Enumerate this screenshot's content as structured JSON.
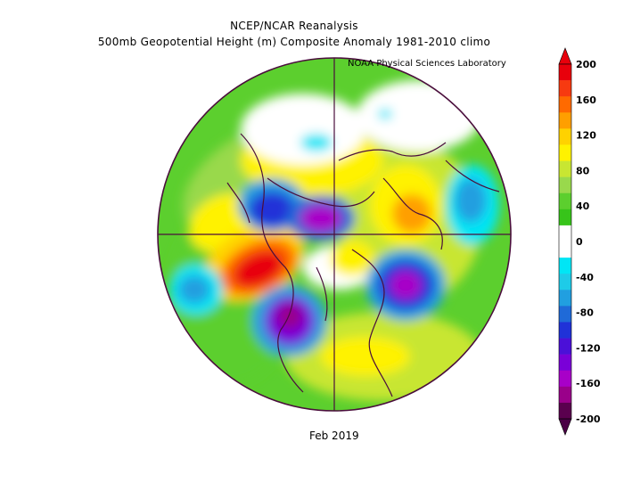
{
  "header": {
    "line1": "NCEP/NCAR Reanalysis",
    "line2": "500mb Geopotential Height (m) Composite Anomaly 1981-2010 climo",
    "credit": "NOAA Physical Sciences Laboratory"
  },
  "footer": {
    "date": "Feb 2019"
  },
  "colorbar": {
    "labels": [
      "200",
      "160",
      "120",
      "80",
      "40",
      "0",
      "-40",
      "-80",
      "-120",
      "-160",
      "-200"
    ],
    "colors": [
      "#e8000c",
      "#f73a10",
      "#ff6a00",
      "#ff9f00",
      "#ffd200",
      "#fff200",
      "#c8e632",
      "#99d94c",
      "#5ccf2e",
      "#37c41a",
      "#ffffff",
      "#ffffff",
      "#00e6f5",
      "#1ecbe8",
      "#219fe0",
      "#1f6ad8",
      "#2032d8",
      "#4b10d8",
      "#7a00d8",
      "#a800c8",
      "#9a008a",
      "#5a004e"
    ],
    "top_color": "#e8000c",
    "bottom_color": "#4a0046"
  },
  "map_colors": {
    "p1": "#5ccf2e",
    "p2": "#99d94c",
    "p3": "#c8e632",
    "p4": "#fff200",
    "p5": "#ffd200",
    "p6": "#ff9f00",
    "p7": "#ff6a00",
    "p8": "#e8000c",
    "n1": "#00e6f5",
    "n2": "#219fe0",
    "n3": "#1f6ad8",
    "n4": "#2032d8",
    "n5": "#7a00d8",
    "n6": "#a800c8",
    "n7": "#9a008a",
    "coast": "#4a0e3c"
  }
}
